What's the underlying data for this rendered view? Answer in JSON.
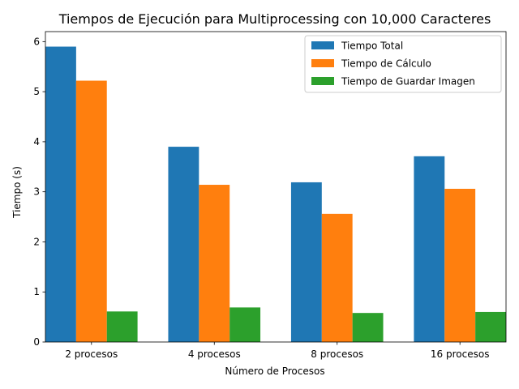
{
  "chart_data": {
    "type": "bar",
    "title": "Tiempos de Ejecución para Multiprocessing con 10,000 Caracteres",
    "xlabel": "Número de Procesos",
    "ylabel": "Tiempo (s)",
    "categories": [
      "2 procesos",
      "4 procesos",
      "8 procesos",
      "16 procesos"
    ],
    "ylim": [
      0,
      6.2
    ],
    "yticks": [
      0,
      1,
      2,
      3,
      4,
      5,
      6
    ],
    "grid": false,
    "legend_position": "top-right",
    "series": [
      {
        "name": "Tiempo Total",
        "color": "#1f77b4",
        "values": [
          5.9,
          3.9,
          3.19,
          3.71
        ]
      },
      {
        "name": "Tiempo de Cálculo",
        "color": "#ff7f0e",
        "values": [
          5.22,
          3.14,
          2.56,
          3.06
        ]
      },
      {
        "name": "Tiempo de Guardar Imagen",
        "color": "#2ca02c",
        "values": [
          0.61,
          0.69,
          0.58,
          0.6
        ]
      }
    ]
  }
}
